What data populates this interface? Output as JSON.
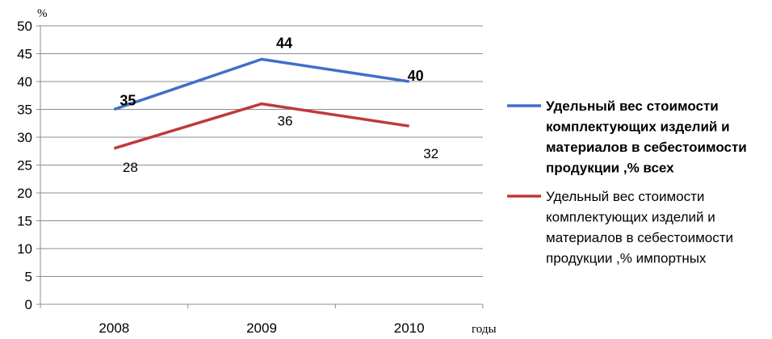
{
  "chart_data": {
    "type": "line",
    "categories": [
      "2008",
      "2009",
      "2010"
    ],
    "ylabel": "%",
    "xlabel": "годы",
    "ylim": [
      0,
      50
    ],
    "yticks": [
      0,
      5,
      10,
      15,
      20,
      25,
      30,
      35,
      40,
      45,
      50
    ],
    "grid": "horizontal",
    "legend_position": "right",
    "series": [
      {
        "name_lines": [
          "Удельный вес стоимости",
          "комплектующих  изделий и",
          "материалов в себестоимости",
          "продукции ,% всех"
        ],
        "values": [
          35,
          44,
          40
        ],
        "labels": [
          "35",
          "44",
          "40"
        ],
        "color": "#3F6FCB",
        "bold_labels": true
      },
      {
        "name_lines": [
          "Удельный вес стоимости",
          "комплектующих  изделий и",
          "материалов в себестоимости",
          "продукции ,% импортных"
        ],
        "values": [
          28,
          36,
          32
        ],
        "labels": [
          "28",
          "36",
          "32"
        ],
        "color": "#C0393B",
        "bold_labels": false
      }
    ]
  }
}
